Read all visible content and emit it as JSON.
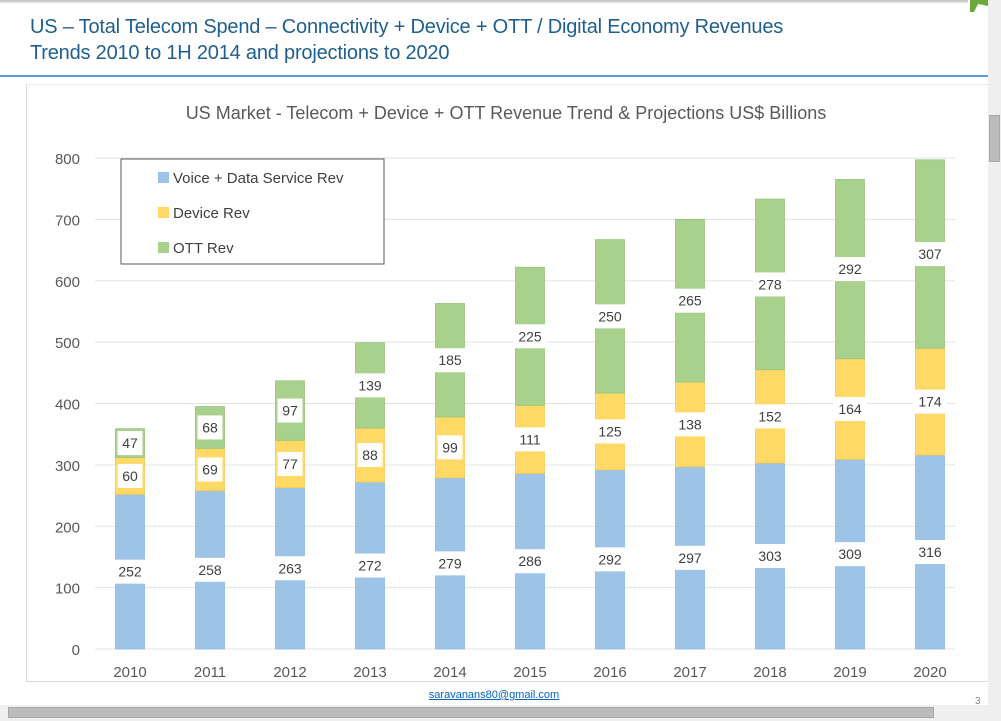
{
  "slide": {
    "title_line1": "US – Total Telecom Spend – Connectivity + Device + OTT / Digital Economy Revenues",
    "title_line2": "Trends 2010 to 1H 2014 and projections to 2020",
    "footer_email": "saravanans80@gmail.com",
    "page_number": "3"
  },
  "chart_data": {
    "type": "bar",
    "stacked": true,
    "title": "US Market - Telecom + Device + OTT Revenue Trend & Projections US$ Billions",
    "xlabel": "",
    "ylabel": "",
    "ylim": [
      0,
      800
    ],
    "yticks": [
      0,
      100,
      200,
      300,
      400,
      500,
      600,
      700,
      800
    ],
    "grid": true,
    "legend_position": "top-left",
    "categories": [
      "2010",
      "2011",
      "2012",
      "2013",
      "2014",
      "2015",
      "2016",
      "2017",
      "2018",
      "2019",
      "2020"
    ],
    "series": [
      {
        "name": "Voice + Data Service Rev",
        "color": "#9dc3e6",
        "values": [
          252,
          258,
          263,
          272,
          279,
          286,
          292,
          297,
          303,
          309,
          316
        ]
      },
      {
        "name": "Device Rev",
        "color": "#ffd966",
        "values": [
          60,
          69,
          77,
          88,
          99,
          111,
          125,
          138,
          152,
          164,
          174
        ]
      },
      {
        "name": "OTT Rev",
        "color": "#a9d18e",
        "values": [
          47,
          68,
          97,
          139,
          185,
          225,
          250,
          265,
          278,
          292,
          307
        ]
      }
    ]
  }
}
